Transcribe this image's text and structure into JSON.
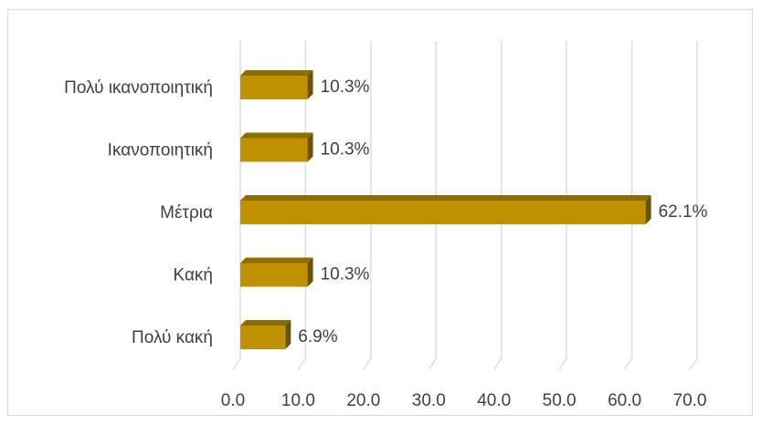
{
  "chart_data": {
    "type": "bar",
    "orientation": "horizontal",
    "style": "3d",
    "categories": [
      "Πολύ ικανοποιητική",
      "Ικανοποιητική",
      "Μέτρια",
      "Κακή",
      "Πολύ κακή"
    ],
    "values": [
      10.3,
      10.3,
      62.1,
      10.3,
      6.9
    ],
    "value_labels": [
      "10.3%",
      "10.3%",
      "62.1%",
      "10.3%",
      "6.9%"
    ],
    "x_ticks": [
      "0.0",
      "10.0",
      "20.0",
      "30.0",
      "40.0",
      "50.0",
      "60.0",
      "70.0"
    ],
    "xlim": [
      0,
      70
    ],
    "title": "",
    "xlabel": "",
    "ylabel": "",
    "grid": true,
    "legend": "none",
    "colors": {
      "bar_front": "#bf9000",
      "bar_top": "#8f6c00",
      "bar_side": "#6b5100",
      "grid": "#d9d9d9",
      "text": "#404040"
    }
  }
}
